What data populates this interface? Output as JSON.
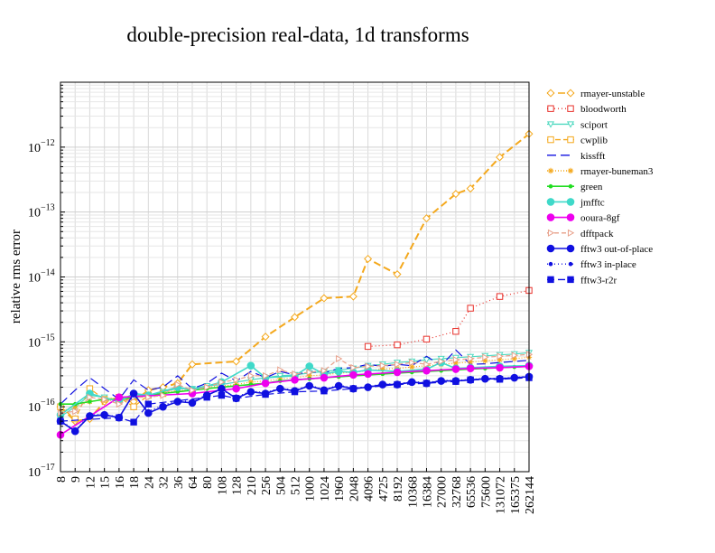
{
  "chart_data": {
    "type": "line",
    "title": "double-precision real-data, 1d transforms",
    "xlabel": "",
    "ylabel": "relative rms error",
    "yscale": "log",
    "ylim": [
      1e-17,
      1e-11
    ],
    "y_ticks": [
      {
        "value": 1e-17,
        "label": "10",
        "exp": "−17"
      },
      {
        "value": 1e-16,
        "label": "10",
        "exp": "−16"
      },
      {
        "value": 1e-15,
        "label": "10",
        "exp": "−15"
      },
      {
        "value": 1e-14,
        "label": "10",
        "exp": "−14"
      },
      {
        "value": 1e-13,
        "label": "10",
        "exp": "−13"
      },
      {
        "value": 1e-12,
        "label": "10",
        "exp": "−12"
      }
    ],
    "categories": [
      "8",
      "9",
      "12",
      "15",
      "16",
      "18",
      "24",
      "32",
      "36",
      "64",
      "80",
      "108",
      "128",
      "210",
      "256",
      "504",
      "512",
      "1000",
      "1024",
      "1960",
      "2048",
      "4096",
      "4725",
      "8192",
      "10368",
      "16384",
      "27000",
      "32768",
      "65536",
      "75600",
      "131072",
      "165375",
      "262144"
    ],
    "grid": true,
    "legend_position": "right",
    "series": [
      {
        "name": "rmayer-unstable",
        "color": "#f4a81c",
        "dash": "8,4",
        "marker": "diamond-open",
        "values": [
          1e-16,
          6e-17,
          6.5e-17,
          1.2e-16,
          1.4e-16,
          1.2e-16,
          1.8e-16,
          2e-16,
          2.3e-16,
          4.5e-16,
          null,
          null,
          5e-16,
          null,
          1.2e-15,
          null,
          2.4e-15,
          null,
          4.7e-15,
          null,
          5e-15,
          1.9e-14,
          null,
          1.1e-14,
          null,
          8e-14,
          null,
          1.9e-13,
          2.3e-13,
          null,
          7e-13,
          null,
          1.6e-12
        ]
      },
      {
        "name": "bloodworth",
        "color": "#e8302a",
        "dash": "1,3",
        "marker": "square-open",
        "values": [
          null,
          null,
          null,
          null,
          null,
          null,
          null,
          null,
          null,
          null,
          null,
          null,
          null,
          null,
          null,
          null,
          null,
          null,
          null,
          null,
          null,
          8.5e-16,
          null,
          9e-16,
          null,
          1.1e-15,
          null,
          1.45e-15,
          3.3e-15,
          null,
          5e-15,
          null,
          6.2e-15
        ]
      },
      {
        "name": "sciport",
        "color": "#4fd9c0",
        "dash": "",
        "marker": "triangle-down-open",
        "values": [
          7e-17,
          1e-16,
          1.5e-16,
          1.4e-16,
          1.2e-16,
          1.5e-16,
          1.5e-16,
          1.7e-16,
          1.9e-16,
          1.9e-16,
          2.1e-16,
          2.2e-16,
          2.4e-16,
          2.6e-16,
          2.8e-16,
          3e-16,
          3.1e-16,
          3.3e-16,
          3.5e-16,
          3.7e-16,
          3.9e-16,
          4.3e-16,
          4.5e-16,
          4.8e-16,
          5e-16,
          5.3e-16,
          5.5e-16,
          5.7e-16,
          5.9e-16,
          6.1e-16,
          6.3e-16,
          6.5e-16,
          6.8e-16
        ]
      },
      {
        "name": "cwplib",
        "color": "#f4a81c",
        "dash": "6,3",
        "marker": "square-open",
        "values": [
          1e-16,
          6.5e-17,
          1.9e-16,
          1.3e-16,
          1.4e-16,
          1e-16,
          1.5e-16,
          1.6e-16,
          null,
          null,
          null,
          null,
          null,
          null,
          null,
          null,
          null,
          null,
          null,
          null,
          null,
          null,
          null,
          null,
          null,
          null,
          null,
          null,
          null,
          null,
          null,
          null,
          null
        ]
      },
      {
        "name": "kissfft",
        "color": "#1010e0",
        "dash": "10,5",
        "marker": "none",
        "values": [
          1.1e-16,
          1.8e-16,
          2.8e-16,
          1.9e-16,
          1.3e-16,
          2.6e-16,
          1.8e-16,
          2e-16,
          3e-16,
          1.9e-16,
          2.3e-16,
          3.3e-16,
          2.5e-16,
          3.5e-16,
          2.8e-16,
          3.5e-16,
          3.1e-16,
          3.5e-16,
          3.3e-16,
          3.9e-16,
          4e-16,
          4.5e-16,
          4.2e-16,
          4.5e-16,
          4.3e-16,
          6e-16,
          4.3e-16,
          7.5e-16,
          4.5e-16,
          4.6e-16,
          4.8e-16,
          5e-16,
          5.2e-16
        ]
      },
      {
        "name": "rmayer-buneman3",
        "color": "#f4a81c",
        "dash": "1,2",
        "marker": "star",
        "values": [
          8.5e-17,
          1e-16,
          1.2e-16,
          1.3e-16,
          1.2e-16,
          1.4e-16,
          1.5e-16,
          1.6e-16,
          1.8e-16,
          1.8e-16,
          2e-16,
          2.1e-16,
          2.2e-16,
          2.4e-16,
          2.5e-16,
          2.7e-16,
          2.8e-16,
          3e-16,
          3.1e-16,
          3.3e-16,
          3.4e-16,
          3.6e-16,
          3.8e-16,
          3.9e-16,
          4.1e-16,
          4.3e-16,
          4.5e-16,
          4.7e-16,
          4.9e-16,
          5.1e-16,
          5.3e-16,
          5.5e-16,
          5.8e-16
        ]
      },
      {
        "name": "green",
        "color": "#22dd22",
        "dash": "",
        "marker": "dot-small",
        "values": [
          1.1e-16,
          1.1e-16,
          1.2e-16,
          1.3e-16,
          1.3e-16,
          1.4e-16,
          1.5e-16,
          1.6e-16,
          1.7e-16,
          1.8e-16,
          1.9e-16,
          2e-16,
          2.1e-16,
          2.2e-16,
          2.3e-16,
          2.5e-16,
          2.6e-16,
          2.7e-16,
          2.8e-16,
          2.9e-16,
          3e-16,
          3.1e-16,
          3.2e-16,
          3.3e-16,
          3.4e-16,
          3.5e-16,
          3.6e-16,
          3.7e-16,
          3.8e-16,
          3.9e-16,
          4e-16,
          4.1e-16,
          4.2e-16
        ]
      },
      {
        "name": "jmfftc",
        "color": "#3fd9c9",
        "dash": "",
        "marker": "dot",
        "values": [
          7.5e-17,
          null,
          1.6e-16,
          null,
          1.2e-16,
          1.6e-16,
          1.5e-16,
          null,
          2e-16,
          1.8e-16,
          null,
          2.4e-16,
          null,
          4.3e-16,
          2.8e-16,
          null,
          3e-16,
          4.2e-16,
          3.2e-16,
          3.5e-16,
          3.4e-16,
          3.7e-16,
          null,
          3.5e-16,
          null,
          3.8e-16,
          4.8e-16,
          3.9e-16,
          4e-16,
          null,
          4.2e-16,
          null,
          4.3e-16
        ]
      },
      {
        "name": "ooura-8gf",
        "color": "#ee00ee",
        "dash": "",
        "marker": "dot",
        "values": [
          3.7e-17,
          null,
          null,
          null,
          1.4e-16,
          null,
          null,
          null,
          null,
          1.6e-16,
          null,
          null,
          1.9e-16,
          null,
          2.3e-16,
          null,
          2.6e-16,
          null,
          2.8e-16,
          null,
          3.1e-16,
          3.2e-16,
          null,
          3.4e-16,
          null,
          3.6e-16,
          null,
          3.8e-16,
          3.9e-16,
          null,
          4e-16,
          null,
          4.2e-16
        ]
      },
      {
        "name": "dfftpack",
        "color": "#e8a08a",
        "dash": "5,3",
        "marker": "triangle-right-open",
        "values": [
          8e-17,
          8.5e-17,
          1.4e-16,
          1.3e-16,
          1.1e-16,
          1.4e-16,
          1.4e-16,
          1.5e-16,
          2.2e-16,
          1.8e-16,
          2e-16,
          2.4e-16,
          2.6e-16,
          3e-16,
          3e-16,
          3.7e-16,
          3.2e-16,
          3.4e-16,
          3.6e-16,
          5.5e-16,
          4e-16,
          4.2e-16,
          4.3e-16,
          4.5e-16,
          4.8e-16,
          4.5e-16,
          5e-16,
          5.3e-16,
          5.5e-16,
          5.8e-16,
          6e-16,
          6.2e-16,
          6.4e-16
        ]
      },
      {
        "name": "fftw3 out-of-place",
        "color": "#1010e0",
        "dash": "",
        "marker": "dot",
        "values": [
          6e-17,
          4.2e-17,
          7.2e-17,
          7.5e-17,
          6.8e-17,
          1.6e-16,
          8e-17,
          1e-16,
          1.2e-16,
          1.15e-16,
          1.5e-16,
          1.9e-16,
          1.35e-16,
          1.7e-16,
          1.6e-16,
          1.9e-16,
          1.75e-16,
          2.1e-16,
          1.8e-16,
          2.1e-16,
          1.9e-16,
          2e-16,
          2.2e-16,
          2.2e-16,
          2.4e-16,
          2.3e-16,
          2.5e-16,
          2.5e-16,
          2.6e-16,
          2.7e-16,
          2.7e-16,
          2.8e-16,
          2.9e-16
        ]
      },
      {
        "name": "fftw3 in-place",
        "color": "#1010e0",
        "dash": "1,3",
        "marker": "dot-small",
        "values": [
          6.2e-17,
          4.3e-17,
          7.5e-17,
          7.6e-17,
          7e-17,
          1.5e-16,
          8.5e-17,
          1.05e-16,
          1.25e-16,
          1.2e-16,
          1.55e-16,
          1.8e-16,
          1.4e-16,
          1.75e-16,
          1.65e-16,
          1.95e-16,
          1.8e-16,
          2.15e-16,
          1.85e-16,
          2.15e-16,
          1.95e-16,
          2.05e-16,
          2.25e-16,
          2.25e-16,
          2.45e-16,
          2.35e-16,
          2.55e-16,
          2.55e-16,
          2.65e-16,
          2.75e-16,
          2.75e-16,
          2.85e-16,
          2.95e-16
        ]
      },
      {
        "name": "fftw3-r2r",
        "color": "#1010e0",
        "dash": "8,4",
        "marker": "square",
        "values": [
          6e-17,
          null,
          null,
          null,
          6.8e-17,
          5.8e-17,
          1.1e-16,
          null,
          null,
          null,
          1.4e-16,
          1.5e-16,
          1.35e-16,
          null,
          1.55e-16,
          null,
          1.7e-16,
          null,
          1.75e-16,
          null,
          1.9e-16,
          null,
          null,
          2.2e-16,
          null,
          2.3e-16,
          null,
          2.45e-16,
          2.6e-16,
          null,
          2.65e-16,
          null,
          2.8e-16
        ]
      }
    ]
  }
}
